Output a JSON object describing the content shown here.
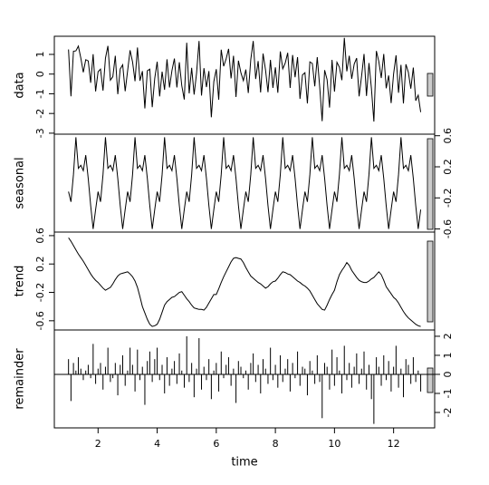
{
  "chart_data": {
    "type": "decomposition",
    "xlabel": "time",
    "x": [
      1,
      1.083,
      1.167,
      1.25,
      1.333,
      1.417,
      1.5,
      1.583,
      1.667,
      1.75,
      1.833,
      1.917,
      2,
      2.083,
      2.167,
      2.25,
      2.333,
      2.417,
      2.5,
      2.583,
      2.667,
      2.75,
      2.833,
      2.917,
      3,
      3.083,
      3.167,
      3.25,
      3.333,
      3.417,
      3.5,
      3.583,
      3.667,
      3.75,
      3.833,
      3.917,
      4,
      4.083,
      4.167,
      4.25,
      4.333,
      4.417,
      4.5,
      4.583,
      4.667,
      4.75,
      4.833,
      4.917,
      5,
      5.083,
      5.167,
      5.25,
      5.333,
      5.417,
      5.5,
      5.583,
      5.667,
      5.75,
      5.833,
      5.917,
      6,
      6.083,
      6.167,
      6.25,
      6.333,
      6.417,
      6.5,
      6.583,
      6.667,
      6.75,
      6.833,
      6.917,
      7,
      7.083,
      7.167,
      7.25,
      7.333,
      7.417,
      7.5,
      7.583,
      7.667,
      7.75,
      7.833,
      7.917,
      8,
      8.083,
      8.167,
      8.25,
      8.333,
      8.417,
      8.5,
      8.583,
      8.667,
      8.75,
      8.833,
      8.917,
      9,
      9.083,
      9.167,
      9.25,
      9.333,
      9.417,
      9.5,
      9.583,
      9.667,
      9.75,
      9.833,
      9.917,
      10,
      10.083,
      10.167,
      10.25,
      10.333,
      10.417,
      10.5,
      10.583,
      10.667,
      10.75,
      10.833,
      10.917,
      11,
      11.083,
      11.167,
      11.25,
      11.333,
      11.417,
      11.5,
      11.583,
      11.667,
      11.75,
      11.833,
      11.917,
      12,
      12.083,
      12.167,
      12.25,
      12.333,
      12.417,
      12.5,
      12.583,
      12.667,
      12.75,
      12.833,
      12.917
    ],
    "xlim": [
      0.52,
      13.39
    ],
    "xticks": [
      2,
      4,
      6,
      8,
      10,
      12
    ],
    "panels": [
      {
        "name": "data",
        "type": "line",
        "ylim": [
          -3.05,
          1.92
        ],
        "yticks": [
          -3,
          -2,
          -1,
          0,
          1
        ],
        "values": [
          1.25,
          -1.13,
          1.16,
          1.18,
          1.42,
          0.81,
          0.09,
          0.73,
          0.67,
          -0.44,
          1.01,
          -0.88,
          0.12,
          0.25,
          -0.84,
          0.81,
          1.43,
          -0.31,
          -0.13,
          0.93,
          -1.02,
          0.26,
          0.47,
          -0.87,
          0.17,
          1.21,
          0.62,
          -0.36,
          1.35,
          -0.34,
          0.15,
          -1.74,
          0.17,
          0.25,
          -1.68,
          -0.22,
          0.63,
          -1.13,
          0.12,
          -0.8,
          0.75,
          -0.68,
          0.18,
          0.79,
          -0.68,
          0.6,
          -0.59,
          -1.29,
          1.59,
          -0.98,
          0.32,
          -1.04,
          0.05,
          1.68,
          -1.09,
          0.3,
          -0.66,
          0.15,
          -2.19,
          -0.38,
          0.25,
          -1.3,
          1.24,
          0.4,
          0.77,
          1.28,
          -0.22,
          0.93,
          -1.16,
          0.68,
          0.07,
          -0.33,
          0.23,
          -0.96,
          0.73,
          1.68,
          -0.25,
          0.66,
          -0.93,
          1.04,
          0.21,
          -0.92,
          0.72,
          -0.7,
          0.34,
          -0.95,
          1.15,
          0.27,
          0.56,
          1.08,
          -0.7,
          0.97,
          -0.16,
          0.86,
          -1.26,
          -0.04,
          0.07,
          -1.49,
          0.62,
          0.54,
          -0.62,
          0.86,
          -0.65,
          -2.39,
          0.2,
          -0.28,
          -1.7,
          0.72,
          -0.89,
          0.6,
          0.35,
          -0.31,
          1.84,
          0.14,
          0.93,
          -0.24,
          0.51,
          0.81,
          -1.13,
          -0.1,
          1.02,
          -1.11,
          0.56,
          -0.73,
          -2.41,
          1.17,
          0.64,
          -0.2,
          1.02,
          -0.72,
          -0.07,
          -1.47,
          0.01,
          0.95,
          -0.95,
          0.47,
          -1.49,
          0.5,
          0.09,
          -0.74,
          0.33,
          -1.35,
          -1.07,
          -1.93
        ]
      },
      {
        "name": "seasonal",
        "type": "line",
        "ylim": [
          -0.64,
          0.62
        ],
        "yticks": [
          -0.6,
          -0.2,
          0.2,
          0.6
        ],
        "values": [
          -0.12,
          -0.25,
          0.1,
          0.58,
          0.18,
          0.22,
          0.15,
          0.35,
          0.05,
          -0.3,
          -0.6,
          -0.35,
          -0.12,
          -0.25,
          0.1,
          0.58,
          0.18,
          0.22,
          0.15,
          0.35,
          0.05,
          -0.3,
          -0.6,
          -0.35,
          -0.12,
          -0.25,
          0.1,
          0.58,
          0.18,
          0.22,
          0.15,
          0.35,
          0.05,
          -0.3,
          -0.6,
          -0.35,
          -0.12,
          -0.25,
          0.1,
          0.58,
          0.18,
          0.22,
          0.15,
          0.35,
          0.05,
          -0.3,
          -0.6,
          -0.35,
          -0.12,
          -0.25,
          0.1,
          0.58,
          0.18,
          0.22,
          0.15,
          0.35,
          0.05,
          -0.3,
          -0.6,
          -0.35,
          -0.12,
          -0.25,
          0.1,
          0.58,
          0.18,
          0.22,
          0.15,
          0.35,
          0.05,
          -0.3,
          -0.6,
          -0.35,
          -0.12,
          -0.25,
          0.1,
          0.58,
          0.18,
          0.22,
          0.15,
          0.35,
          0.05,
          -0.3,
          -0.6,
          -0.35,
          -0.12,
          -0.25,
          0.1,
          0.58,
          0.18,
          0.22,
          0.15,
          0.35,
          0.05,
          -0.3,
          -0.6,
          -0.35,
          -0.12,
          -0.25,
          0.1,
          0.58,
          0.18,
          0.22,
          0.15,
          0.35,
          0.05,
          -0.3,
          -0.6,
          -0.35,
          -0.12,
          -0.25,
          0.1,
          0.58,
          0.18,
          0.22,
          0.15,
          0.35,
          0.05,
          -0.3,
          -0.6,
          -0.35,
          -0.12,
          -0.25,
          0.1,
          0.58,
          0.18,
          0.22,
          0.15,
          0.35,
          0.05,
          -0.3,
          -0.6,
          -0.35,
          -0.12,
          -0.25,
          0.1,
          0.58,
          0.18,
          0.22,
          0.15,
          0.35,
          0.05,
          -0.3,
          -0.6,
          -0.35
        ]
      },
      {
        "name": "trend",
        "type": "line",
        "ylim": [
          -0.73,
          0.65
        ],
        "yticks": [
          -0.6,
          -0.2,
          0.2,
          0.6
        ],
        "values": [
          0.57,
          0.52,
          0.46,
          0.4,
          0.34,
          0.29,
          0.24,
          0.18,
          0.12,
          0.06,
          0.01,
          -0.03,
          -0.06,
          -0.1,
          -0.14,
          -0.17,
          -0.15,
          -0.13,
          -0.08,
          -0.02,
          0.03,
          0.06,
          0.07,
          0.08,
          0.09,
          0.06,
          0.02,
          -0.04,
          -0.13,
          -0.26,
          -0.4,
          -0.49,
          -0.58,
          -0.65,
          -0.68,
          -0.67,
          -0.65,
          -0.58,
          -0.48,
          -0.38,
          -0.33,
          -0.3,
          -0.27,
          -0.26,
          -0.23,
          -0.2,
          -0.19,
          -0.24,
          -0.29,
          -0.33,
          -0.38,
          -0.42,
          -0.43,
          -0.44,
          -0.44,
          -0.45,
          -0.41,
          -0.35,
          -0.29,
          -0.23,
          -0.23,
          -0.15,
          -0.06,
          0.02,
          0.09,
          0.16,
          0.23,
          0.28,
          0.29,
          0.28,
          0.27,
          0.22,
          0.15,
          0.09,
          0.03,
          0,
          -0.03,
          -0.06,
          -0.08,
          -0.11,
          -0.14,
          -0.12,
          -0.08,
          -0.05,
          -0.04,
          0,
          0.05,
          0.09,
          0.08,
          0.06,
          0.05,
          0.02,
          -0.01,
          -0.04,
          -0.06,
          -0.09,
          -0.11,
          -0.14,
          -0.18,
          -0.24,
          -0.3,
          -0.36,
          -0.4,
          -0.44,
          -0.45,
          -0.38,
          -0.3,
          -0.23,
          -0.17,
          -0.05,
          0.05,
          0.11,
          0.16,
          0.22,
          0.18,
          0.11,
          0.06,
          0.01,
          -0.03,
          -0.05,
          -0.06,
          -0.06,
          -0.04,
          -0.01,
          0.01,
          0.05,
          0.09,
          0.05,
          -0.03,
          -0.12,
          -0.17,
          -0.22,
          -0.27,
          -0.3,
          -0.35,
          -0.41,
          -0.47,
          -0.52,
          -0.56,
          -0.59,
          -0.62,
          -0.65,
          -0.67,
          -0.68
        ]
      },
      {
        "name": "remainder",
        "type": "spike",
        "ylim": [
          -2.81,
          2.33
        ],
        "yticks": [
          -2,
          -1,
          0,
          1,
          2
        ],
        "values": [
          0.8,
          -1.4,
          0.6,
          0.2,
          0.9,
          0.3,
          -0.3,
          0.2,
          0.5,
          -0.2,
          1.6,
          -0.5,
          0.3,
          0.6,
          -0.8,
          0.4,
          1.4,
          -0.4,
          -0.2,
          0.6,
          -1.1,
          0.5,
          1,
          -0.6,
          0.2,
          1.4,
          0.5,
          -0.9,
          1.3,
          -0.3,
          0.4,
          -1.6,
          0.7,
          1.2,
          -0.4,
          0.8,
          1.4,
          -0.3,
          0.5,
          -1,
          0.9,
          -0.6,
          0.3,
          0.7,
          -0.5,
          1.1,
          0.2,
          -0.7,
          2,
          -0.4,
          0.6,
          -1.2,
          0.3,
          1.9,
          -0.8,
          0.4,
          -0.3,
          0.8,
          -1.3,
          0.2,
          0.6,
          -0.9,
          1.2,
          -0.2,
          0.5,
          0.9,
          -0.6,
          0.3,
          -1.5,
          0.7,
          0.4,
          -0.2,
          0.2,
          -0.8,
          0.6,
          1.1,
          -0.4,
          0.5,
          -1,
          0.8,
          0.3,
          -0.5,
          1.4,
          -0.3,
          0.5,
          -0.7,
          1,
          -0.4,
          0.3,
          0.8,
          -0.9,
          0.6,
          -0.2,
          1.2,
          -0.6,
          0.4,
          0.3,
          -1.1,
          0.7,
          0.2,
          -0.5,
          1,
          -0.4,
          -2.3,
          0.6,
          0.4,
          -0.8,
          1.3,
          -0.6,
          0.9,
          0.2,
          -1,
          1.5,
          -0.3,
          0.6,
          -0.7,
          0.4,
          1.1,
          -0.5,
          0.3,
          1.2,
          -0.8,
          0.5,
          -1.3,
          -2.6,
          0.9,
          0.4,
          -0.6,
          1,
          -0.3,
          0.7,
          -0.9,
          0.4,
          1.5,
          -0.7,
          0.3,
          -1.2,
          0.8,
          0.5,
          -0.5,
          0.9,
          -0.4,
          0.2,
          -0.9
        ]
      }
    ]
  }
}
